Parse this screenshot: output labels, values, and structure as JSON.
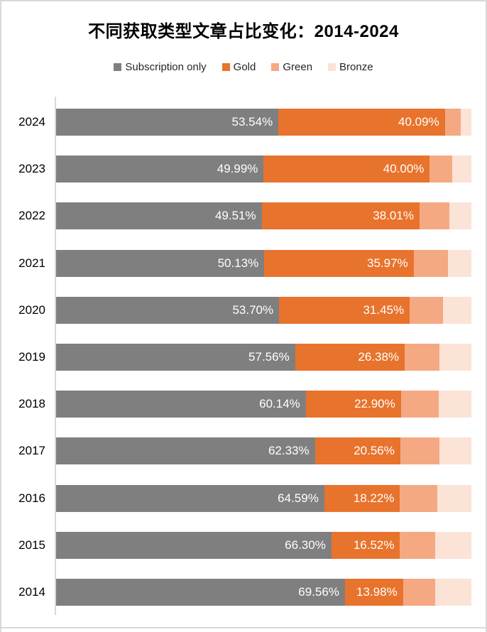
{
  "window": {
    "background": "#FFFFFF",
    "border_color": "#D9D9D9",
    "axis_line_color": "#D9D9D9"
  },
  "text_colors": {
    "title": "#000000",
    "legend": "#262626",
    "year_labels": "#000000",
    "bar_value_labels": "#FFFFFF"
  },
  "chart_data": {
    "type": "bar",
    "orientation": "horizontal",
    "stacked": true,
    "title": "不同获取类型文章占比变化：2014-2024",
    "legend_position": "top",
    "grid": false,
    "xlim": [
      0,
      100
    ],
    "value_format": "0.00%",
    "categories": [
      "2024",
      "2023",
      "2022",
      "2021",
      "2020",
      "2019",
      "2018",
      "2017",
      "2016",
      "2015",
      "2014"
    ],
    "series": [
      {
        "name": "Subscription only",
        "color": "#7F7F7F",
        "labels_shown": true,
        "values": [
          53.54,
          49.99,
          49.51,
          50.13,
          53.7,
          57.56,
          60.14,
          62.33,
          64.59,
          66.3,
          69.56
        ]
      },
      {
        "name": "Gold",
        "color": "#E8732D",
        "labels_shown": true,
        "values": [
          40.09,
          40.0,
          38.01,
          35.97,
          31.45,
          26.38,
          22.9,
          20.56,
          18.22,
          16.52,
          13.98
        ]
      },
      {
        "name": "Green",
        "color": "#F4A983",
        "labels_shown": false,
        "values": [
          3.75,
          5.39,
          7.13,
          8.26,
          7.96,
          8.42,
          9.1,
          9.36,
          8.98,
          8.46,
          7.69
        ]
      },
      {
        "name": "Bronze",
        "color": "#FBE3D6",
        "labels_shown": false,
        "values": [
          2.62,
          4.62,
          5.35,
          5.64,
          6.89,
          7.64,
          7.86,
          7.75,
          8.21,
          8.72,
          8.77
        ]
      }
    ]
  }
}
